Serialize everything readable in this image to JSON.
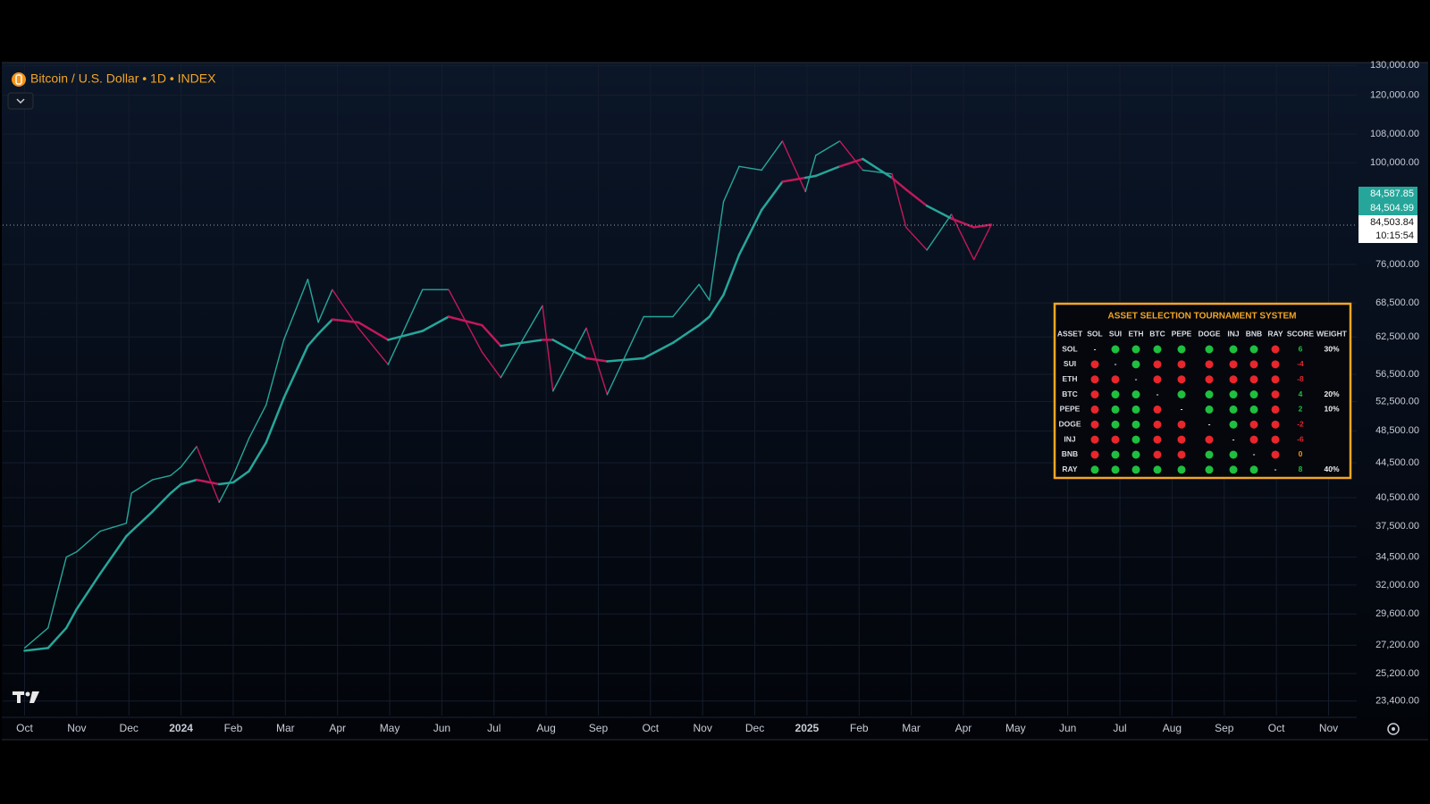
{
  "chart_data": {
    "type": "line",
    "title": "Bitcoin / U.S. Dollar • 1D • INDEX",
    "log_scale": true,
    "grid": true,
    "up_color": "#26a69a",
    "down_color": "#c2185b",
    "x": [
      0,
      0.45,
      0.8,
      1.0,
      1.45,
      1.95,
      2.05,
      2.45,
      2.8,
      3.0,
      3.3,
      3.73,
      4.0,
      4.3,
      4.63,
      4.97,
      5.43,
      5.63,
      5.9,
      6.4,
      6.97,
      7.63,
      8.13,
      8.77,
      9.13,
      9.93,
      10.13,
      10.77,
      11.17,
      11.87,
      12.43,
      12.93,
      13.13,
      13.4,
      13.7,
      14.13,
      14.53,
      14.97,
      15.17,
      15.63,
      16.07,
      16.63,
      16.9,
      17.3,
      17.77,
      18.2,
      18.53
    ],
    "series": [
      {
        "values": [
          27000,
          28500,
          34500,
          35000,
          37000,
          37800,
          41000,
          42500,
          43000,
          44000,
          46500,
          40000,
          43000,
          47500,
          52000,
          62000,
          73000,
          65000,
          71000,
          64000,
          58000,
          71000,
          71000,
          60000,
          56000,
          68000,
          54000,
          64000,
          53500,
          66000,
          66000,
          72000,
          69000,
          90000,
          99000,
          98000,
          106000,
          92500,
          102000,
          106000,
          98000,
          97000,
          84000,
          79000,
          87000,
          77000,
          84503.84
        ]
      },
      {
        "values": [
          26800,
          27000,
          28500,
          30000,
          33000,
          36500,
          37000,
          39000,
          41000,
          42000,
          42500,
          42000,
          42200,
          43500,
          47000,
          53000,
          61000,
          63000,
          65500,
          65000,
          62000,
          63500,
          66000,
          64500,
          61000,
          62000,
          62000,
          59000,
          58500,
          59000,
          61500,
          64500,
          66000,
          70000,
          78000,
          88000,
          95000,
          96000,
          96500,
          99000,
          101000,
          96000,
          93000,
          89000,
          86000,
          84000,
          84587.85
        ]
      }
    ],
    "xlim": [
      -0.42,
      25.54
    ],
    "ylim": [
      22500,
      130700
    ],
    "xticks": [
      {
        "value": 0,
        "label": "Oct"
      },
      {
        "value": 1,
        "label": "Nov"
      },
      {
        "value": 2,
        "label": "Dec"
      },
      {
        "value": 3,
        "label": "2024"
      },
      {
        "value": 4,
        "label": "Feb"
      },
      {
        "value": 5,
        "label": "Mar"
      },
      {
        "value": 6,
        "label": "Apr"
      },
      {
        "value": 7,
        "label": "May"
      },
      {
        "value": 8,
        "label": "Jun"
      },
      {
        "value": 9,
        "label": "Jul"
      },
      {
        "value": 10,
        "label": "Aug"
      },
      {
        "value": 11,
        "label": "Sep"
      },
      {
        "value": 12,
        "label": "Oct"
      },
      {
        "value": 13,
        "label": "Nov"
      },
      {
        "value": 14,
        "label": "Dec"
      },
      {
        "value": 15,
        "label": "2025"
      },
      {
        "value": 16,
        "label": "Feb"
      },
      {
        "value": 17,
        "label": "Mar"
      },
      {
        "value": 18,
        "label": "Apr"
      },
      {
        "value": 19,
        "label": "May"
      },
      {
        "value": 20,
        "label": "Jun"
      },
      {
        "value": 21,
        "label": "Jul"
      },
      {
        "value": 22,
        "label": "Aug"
      },
      {
        "value": 23,
        "label": "Sep"
      },
      {
        "value": 24,
        "label": "Oct"
      },
      {
        "value": 25,
        "label": "Nov"
      }
    ],
    "yticks": [
      {
        "value": 23400,
        "label": "23,400.00"
      },
      {
        "value": 25200,
        "label": "25,200.00"
      },
      {
        "value": 27200,
        "label": "27,200.00"
      },
      {
        "value": 29600,
        "label": "29,600.00"
      },
      {
        "value": 32000,
        "label": "32,000.00"
      },
      {
        "value": 34500,
        "label": "34,500.00"
      },
      {
        "value": 37500,
        "label": "37,500.00"
      },
      {
        "value": 40500,
        "label": "40,500.00"
      },
      {
        "value": 44500,
        "label": "44,500.00"
      },
      {
        "value": 48500,
        "label": "48,500.00"
      },
      {
        "value": 52500,
        "label": "52,500.00"
      },
      {
        "value": 56500,
        "label": "56,500.00"
      },
      {
        "value": 62500,
        "label": "62,500.00"
      },
      {
        "value": 68500,
        "label": "68,500.00"
      },
      {
        "value": 76000,
        "label": "76,000.00"
      },
      {
        "value": 100000,
        "label": "100,000.00"
      },
      {
        "value": 108000,
        "label": "108,000.00"
      },
      {
        "value": 120000,
        "label": "120,000.00"
      },
      {
        "value": 130000,
        "label": "130,000.00"
      }
    ],
    "markers": [
      {
        "value": 84587.85,
        "label": "84,587.85",
        "color": "#26a69a"
      },
      {
        "value": 84504.99,
        "label": "84,504.99",
        "color": "#26a69a"
      },
      {
        "value": 84503.84,
        "label": "84,503.84",
        "color": "#ffffff"
      }
    ],
    "countdown": "10:15:54"
  },
  "table": {
    "title": "ASSET SELECTION TOURNAMENT SYSTEM",
    "win_color": "#1fbf3f",
    "loss_color": "#e8262c",
    "neutral_color": "#ff9800",
    "columns": [
      "ASSET",
      "SOL",
      "SUI",
      "ETH",
      "BTC",
      "PEPE",
      "DOGE",
      "INJ",
      "BNB",
      "RAY",
      "SCORE",
      "WEIGHT"
    ],
    "rows": [
      {
        "asset": "SOL",
        "cells": [
          "-",
          "#1fbf3f",
          "#1fbf3f",
          "#1fbf3f",
          "#1fbf3f",
          "#1fbf3f",
          "#1fbf3f",
          "#1fbf3f",
          "#e8262c"
        ],
        "score": 6,
        "weight": "30%"
      },
      {
        "asset": "SUI",
        "cells": [
          "#e8262c",
          "-",
          "#1fbf3f",
          "#e8262c",
          "#e8262c",
          "#e8262c",
          "#e8262c",
          "#e8262c",
          "#e8262c"
        ],
        "score": -4,
        "weight": null
      },
      {
        "asset": "ETH",
        "cells": [
          "#e8262c",
          "#e8262c",
          "-",
          "#e8262c",
          "#e8262c",
          "#e8262c",
          "#e8262c",
          "#e8262c",
          "#e8262c"
        ],
        "score": -8,
        "weight": null
      },
      {
        "asset": "BTC",
        "cells": [
          "#e8262c",
          "#1fbf3f",
          "#1fbf3f",
          "-",
          "#1fbf3f",
          "#1fbf3f",
          "#1fbf3f",
          "#1fbf3f",
          "#e8262c"
        ],
        "score": 4,
        "weight": "20%"
      },
      {
        "asset": "PEPE",
        "cells": [
          "#e8262c",
          "#1fbf3f",
          "#1fbf3f",
          "#e8262c",
          "-",
          "#1fbf3f",
          "#1fbf3f",
          "#1fbf3f",
          "#e8262c"
        ],
        "score": 2,
        "weight": "10%"
      },
      {
        "asset": "DOGE",
        "cells": [
          "#e8262c",
          "#1fbf3f",
          "#1fbf3f",
          "#e8262c",
          "#e8262c",
          "-",
          "#1fbf3f",
          "#e8262c",
          "#e8262c"
        ],
        "score": -2,
        "weight": null
      },
      {
        "asset": "INJ",
        "cells": [
          "#e8262c",
          "#e8262c",
          "#1fbf3f",
          "#e8262c",
          "#e8262c",
          "#e8262c",
          "-",
          "#e8262c",
          "#e8262c"
        ],
        "score": -6,
        "weight": null
      },
      {
        "asset": "BNB",
        "cells": [
          "#e8262c",
          "#1fbf3f",
          "#1fbf3f",
          "#e8262c",
          "#e8262c",
          "#1fbf3f",
          "#1fbf3f",
          "-",
          "#e8262c"
        ],
        "score": 0,
        "weight": null
      },
      {
        "asset": "RAY",
        "cells": [
          "#1fbf3f",
          "#1fbf3f",
          "#1fbf3f",
          "#1fbf3f",
          "#1fbf3f",
          "#1fbf3f",
          "#1fbf3f",
          "#1fbf3f",
          "-"
        ],
        "score": 8,
        "weight": "40%"
      }
    ]
  }
}
